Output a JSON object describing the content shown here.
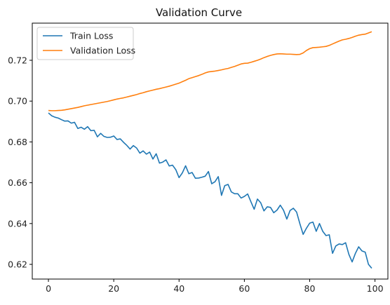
{
  "chart_data": {
    "type": "line",
    "title": "Validation Curve",
    "xlabel": "",
    "ylabel": "",
    "xlim": [
      -4.95,
      103.95
    ],
    "ylim": [
      0.6128,
      0.7382
    ],
    "xticks": [
      0,
      20,
      40,
      60,
      80,
      100
    ],
    "yticks": [
      0.62,
      0.64,
      0.66,
      0.68,
      0.7,
      0.72
    ],
    "ytick_labels": [
      "0.62",
      "0.64",
      "0.66",
      "0.68",
      "0.70",
      "0.72"
    ],
    "grid": false,
    "legend": {
      "location": "upper-left"
    },
    "series": [
      {
        "name": "Train Loss",
        "color": "#1f77b4",
        "x": [
          0,
          1,
          2,
          3,
          4,
          5,
          6,
          7,
          8,
          9,
          10,
          11,
          12,
          13,
          14,
          15,
          16,
          17,
          18,
          19,
          20,
          21,
          22,
          23,
          24,
          25,
          26,
          27,
          28,
          29,
          30,
          31,
          32,
          33,
          34,
          35,
          36,
          37,
          38,
          39,
          40,
          41,
          42,
          43,
          44,
          45,
          46,
          47,
          48,
          49,
          50,
          51,
          52,
          53,
          54,
          55,
          56,
          57,
          58,
          59,
          60,
          61,
          62,
          63,
          64,
          65,
          66,
          67,
          68,
          69,
          70,
          71,
          72,
          73,
          74,
          75,
          76,
          77,
          78,
          79,
          80,
          81,
          82,
          83,
          84,
          85,
          86,
          87,
          88,
          89,
          90,
          91,
          92,
          93,
          94,
          95,
          96,
          97,
          98,
          99
        ],
        "values": [
          0.6942,
          0.6928,
          0.6921,
          0.6917,
          0.6909,
          0.6902,
          0.6903,
          0.6892,
          0.6896,
          0.6866,
          0.6872,
          0.6862,
          0.6875,
          0.6855,
          0.6857,
          0.6825,
          0.6842,
          0.6827,
          0.6822,
          0.6823,
          0.6829,
          0.6812,
          0.6815,
          0.6798,
          0.6783,
          0.6765,
          0.6782,
          0.677,
          0.6745,
          0.6756,
          0.674,
          0.675,
          0.6716,
          0.6742,
          0.6696,
          0.6701,
          0.6712,
          0.6682,
          0.6686,
          0.6664,
          0.6625,
          0.6648,
          0.6683,
          0.6644,
          0.665,
          0.6622,
          0.6623,
          0.6627,
          0.6632,
          0.6655,
          0.6595,
          0.6605,
          0.663,
          0.6538,
          0.6586,
          0.6592,
          0.6555,
          0.6546,
          0.6546,
          0.6525,
          0.6533,
          0.6545,
          0.6507,
          0.647,
          0.652,
          0.6502,
          0.6462,
          0.6482,
          0.6479,
          0.6453,
          0.6466,
          0.649,
          0.6465,
          0.6422,
          0.6464,
          0.6475,
          0.6456,
          0.6399,
          0.6347,
          0.6377,
          0.6402,
          0.6407,
          0.6362,
          0.64,
          0.6362,
          0.6341,
          0.6345,
          0.6254,
          0.629,
          0.63,
          0.6297,
          0.6306,
          0.6249,
          0.6212,
          0.6254,
          0.6286,
          0.6266,
          0.626,
          0.62,
          0.6181
        ]
      },
      {
        "name": "Validation Loss",
        "color": "#ff7f0e",
        "x": [
          0,
          1,
          2,
          3,
          4,
          5,
          6,
          7,
          8,
          9,
          10,
          11,
          12,
          13,
          14,
          15,
          16,
          17,
          18,
          19,
          20,
          21,
          22,
          23,
          24,
          25,
          26,
          27,
          28,
          29,
          30,
          31,
          32,
          33,
          34,
          35,
          36,
          37,
          38,
          39,
          40,
          41,
          42,
          43,
          44,
          45,
          46,
          47,
          48,
          49,
          50,
          51,
          52,
          53,
          54,
          55,
          56,
          57,
          58,
          59,
          60,
          61,
          62,
          63,
          64,
          65,
          66,
          67,
          68,
          69,
          70,
          71,
          72,
          73,
          74,
          75,
          76,
          77,
          78,
          79,
          80,
          81,
          82,
          83,
          84,
          85,
          86,
          87,
          88,
          89,
          90,
          91,
          92,
          93,
          94,
          95,
          96,
          97,
          98,
          99
        ],
        "values": [
          0.6954,
          0.6953,
          0.6953,
          0.6954,
          0.6955,
          0.6957,
          0.696,
          0.6963,
          0.6966,
          0.6969,
          0.6973,
          0.6977,
          0.698,
          0.6983,
          0.6986,
          0.6989,
          0.6992,
          0.6995,
          0.6998,
          0.7002,
          0.7006,
          0.701,
          0.7013,
          0.7016,
          0.702,
          0.7024,
          0.7028,
          0.7032,
          0.7037,
          0.7041,
          0.7046,
          0.705,
          0.7054,
          0.7058,
          0.7061,
          0.7065,
          0.7069,
          0.7073,
          0.7078,
          0.7083,
          0.7088,
          0.7095,
          0.7102,
          0.711,
          0.7115,
          0.712,
          0.7125,
          0.7131,
          0.7138,
          0.7143,
          0.7145,
          0.7147,
          0.715,
          0.7153,
          0.7157,
          0.716,
          0.7165,
          0.717,
          0.7176,
          0.7182,
          0.7185,
          0.7186,
          0.719,
          0.7195,
          0.72,
          0.7206,
          0.7213,
          0.7219,
          0.7224,
          0.7228,
          0.7231,
          0.7232,
          0.7231,
          0.723,
          0.723,
          0.7229,
          0.7228,
          0.7229,
          0.7236,
          0.7248,
          0.7257,
          0.7262,
          0.7263,
          0.7264,
          0.7266,
          0.7268,
          0.7273,
          0.728,
          0.7287,
          0.7294,
          0.73,
          0.7303,
          0.7307,
          0.7312,
          0.7318,
          0.7323,
          0.7326,
          0.7328,
          0.7334,
          0.734
        ]
      }
    ]
  }
}
